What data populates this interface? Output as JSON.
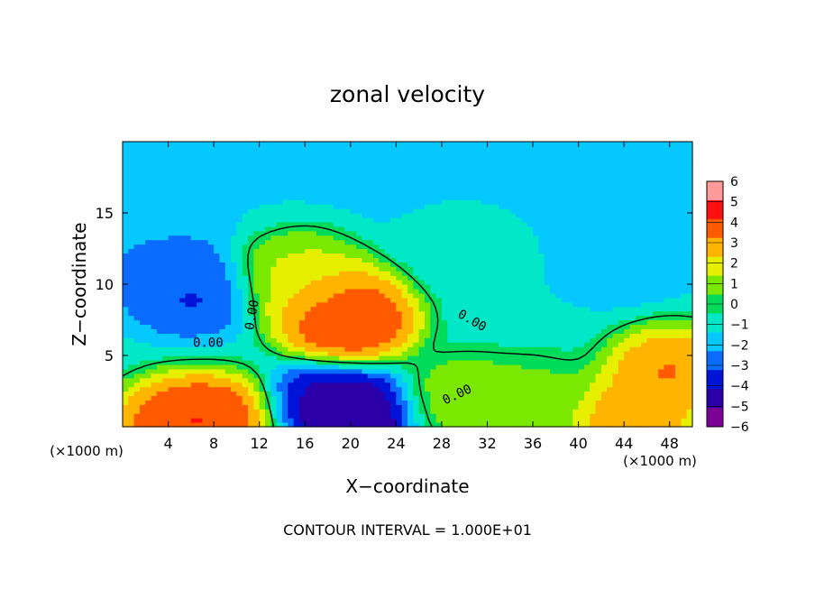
{
  "chart_data": {
    "type": "heatmap",
    "title": "zonal velocity",
    "xlabel": "X−coordinate",
    "ylabel": "Z−coordinate",
    "x_unit": "(×1000 m)",
    "x_unit_right": "(×1000 m)",
    "xlim": [
      0,
      50
    ],
    "ylim": [
      0,
      20
    ],
    "x_ticks": [
      4,
      8,
      12,
      16,
      20,
      24,
      28,
      32,
      36,
      40,
      44,
      48
    ],
    "y_ticks": [
      5,
      10,
      15
    ],
    "colorbar": {
      "ticks": [
        6,
        5,
        4,
        3,
        2,
        1,
        0,
        -1,
        -2,
        -3,
        -4,
        -5,
        -6
      ],
      "tick_labels": [
        "6",
        "5",
        "4",
        "3",
        "2",
        "1",
        "0",
        "−1",
        "−2",
        "−3",
        "−4",
        "−5",
        "−6"
      ],
      "range": [
        -6,
        6
      ]
    },
    "contour_labels": [
      "0.00",
      "0.00",
      "0.00",
      "0.00"
    ],
    "footer": "CONTOUR INTERVAL = 1.000E+01",
    "features": [
      {
        "x": 19.5,
        "z": 7.5,
        "value": 5.5
      },
      {
        "x": 20.0,
        "z": 8.0,
        "value": 4.5
      },
      {
        "x": 17.0,
        "z": 9.5,
        "value": 2.8
      },
      {
        "x": 15.0,
        "z": 11.0,
        "value": 1.8
      },
      {
        "x": 48.0,
        "z": 4.0,
        "value": 4.2
      },
      {
        "x": 6.0,
        "z": 9.5,
        "value": -4.0
      },
      {
        "x": 4.0,
        "z": 11.5,
        "value": -3.0
      },
      {
        "x": 3.0,
        "z": 14.0,
        "value": -2.3
      },
      {
        "x": 44.0,
        "z": 12.0,
        "value": -2.5
      },
      {
        "x": 18.0,
        "z": 1.5,
        "value": -5.0
      },
      {
        "x": 20.0,
        "z": 0.8,
        "value": -6.5
      },
      {
        "x": 40.0,
        "z": 17.0,
        "value": -1.8
      },
      {
        "x": 10.0,
        "z": 17.0,
        "value": -1.5
      },
      {
        "x": 30.0,
        "z": 12.0,
        "value": -0.8
      },
      {
        "x": 5.0,
        "z": 0.5,
        "value": 5.0
      },
      {
        "x": 8.5,
        "z": 0.5,
        "value": 5.0
      },
      {
        "x": 44.5,
        "z": 0.5,
        "value": 4.0
      },
      {
        "x": 30.0,
        "z": 2.0,
        "value": 1.5
      },
      {
        "x": 36.0,
        "z": 2.0,
        "value": 1.0
      }
    ]
  }
}
